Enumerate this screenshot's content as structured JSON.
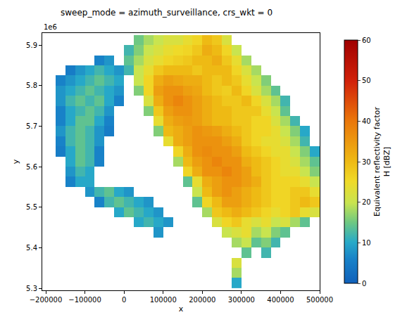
{
  "chart_data": {
    "type": "heatmap",
    "title": "sweep_mode = azimuth_surveillance, crs_wkt = 0",
    "x_label": "x",
    "y_label": "y",
    "y_offset_label": "1e6",
    "grid": false,
    "xlim": [
      -209000,
      500000
    ],
    "ylim": [
      5295000,
      5930000
    ],
    "xticks": [
      {
        "value": -200000,
        "label": "−200000"
      },
      {
        "value": -100000,
        "label": "−100000"
      },
      0,
      100000,
      200000,
      300000,
      400000,
      500000
    ],
    "yticks": [
      {
        "value": 5300000,
        "label": "5.3"
      },
      {
        "value": 5400000,
        "label": "5.4"
      },
      {
        "value": 5500000,
        "label": "5.5"
      },
      {
        "value": 5600000,
        "label": "5.6"
      },
      {
        "value": 5700000,
        "label": "5.7"
      },
      {
        "value": 5800000,
        "label": "5.8"
      },
      {
        "value": 5900000,
        "label": "5.9"
      }
    ],
    "colorbar": {
      "range": [
        0,
        60
      ],
      "ticks": [
        0,
        10,
        20,
        30,
        40,
        50,
        60
      ],
      "label": [
        "Equivalent reflectivity factor",
        "H [dBZ]"
      ]
    },
    "x": [
      -187500,
      -162500,
      -137500,
      -112500,
      -87500,
      -62500,
      -37500,
      -12500,
      12500,
      37500,
      62500,
      87500,
      112500,
      137500,
      162500,
      187500,
      212500,
      237500,
      262500,
      287500,
      312500,
      337500,
      362500,
      387500,
      412500,
      437500,
      462500,
      487500
    ],
    "y": [
      5312500,
      5337500,
      5362500,
      5387500,
      5412500,
      5437500,
      5462500,
      5487500,
      5512500,
      5537500,
      5562500,
      5587500,
      5612500,
      5637500,
      5662500,
      5687500,
      5712500,
      5737500,
      5762500,
      5787500,
      5812500,
      5837500,
      5862500,
      5887500,
      5912500
    ],
    "cells": [
      [
        null,
        null,
        null,
        null,
        null,
        null,
        null,
        null,
        null,
        null,
        null,
        null,
        null,
        null,
        null,
        null,
        null,
        null,
        null,
        10,
        null,
        null,
        null,
        null,
        null,
        null,
        null,
        null
      ],
      [
        null,
        null,
        null,
        null,
        null,
        null,
        null,
        null,
        null,
        null,
        null,
        null,
        null,
        null,
        null,
        null,
        null,
        null,
        null,
        18,
        null,
        null,
        null,
        null,
        null,
        null,
        null,
        null
      ],
      [
        null,
        null,
        null,
        null,
        null,
        null,
        null,
        null,
        null,
        null,
        null,
        null,
        null,
        null,
        null,
        null,
        null,
        null,
        null,
        22,
        null,
        null,
        null,
        null,
        null,
        null,
        null,
        null
      ],
      [
        null,
        null,
        null,
        null,
        null,
        null,
        null,
        null,
        null,
        null,
        null,
        null,
        null,
        null,
        null,
        null,
        null,
        null,
        null,
        null,
        14,
        null,
        12,
        null,
        null,
        null,
        null,
        null
      ],
      [
        null,
        null,
        null,
        null,
        null,
        null,
        null,
        null,
        null,
        null,
        null,
        null,
        null,
        null,
        null,
        null,
        null,
        null,
        null,
        18,
        20,
        14,
        16,
        12,
        null,
        null,
        null,
        null
      ],
      [
        null,
        null,
        null,
        null,
        null,
        null,
        null,
        null,
        null,
        null,
        null,
        8,
        null,
        null,
        null,
        null,
        null,
        null,
        20,
        22,
        24,
        18,
        20,
        16,
        14,
        null,
        null,
        null
      ],
      [
        null,
        null,
        null,
        null,
        null,
        null,
        null,
        null,
        null,
        10,
        12,
        10,
        8,
        null,
        null,
        null,
        null,
        22,
        26,
        28,
        24,
        22,
        24,
        20,
        22,
        18,
        14,
        null
      ],
      [
        null,
        null,
        null,
        null,
        null,
        null,
        null,
        10,
        14,
        12,
        10,
        8,
        null,
        null,
        null,
        null,
        18,
        28,
        30,
        32,
        30,
        28,
        26,
        24,
        26,
        28,
        24,
        22
      ],
      [
        null,
        null,
        null,
        null,
        null,
        6,
        12,
        14,
        12,
        10,
        8,
        null,
        null,
        null,
        null,
        14,
        26,
        30,
        34,
        34,
        32,
        30,
        28,
        26,
        26,
        28,
        30,
        28
      ],
      [
        null,
        null,
        null,
        null,
        8,
        12,
        14,
        10,
        8,
        null,
        null,
        null,
        null,
        null,
        null,
        20,
        30,
        34,
        36,
        34,
        32,
        30,
        28,
        26,
        26,
        28,
        28,
        24
      ],
      [
        null,
        null,
        6,
        10,
        10,
        null,
        null,
        null,
        null,
        null,
        null,
        null,
        null,
        null,
        14,
        24,
        32,
        34,
        36,
        36,
        34,
        32,
        28,
        26,
        26,
        26,
        24,
        20
      ],
      [
        null,
        null,
        8,
        12,
        10,
        null,
        null,
        null,
        null,
        null,
        null,
        null,
        null,
        null,
        26,
        32,
        36,
        36,
        38,
        36,
        34,
        30,
        28,
        26,
        24,
        24,
        20,
        16
      ],
      [
        null,
        null,
        10,
        14,
        12,
        6,
        null,
        null,
        null,
        null,
        null,
        null,
        null,
        18,
        30,
        34,
        36,
        38,
        36,
        36,
        32,
        30,
        28,
        26,
        24,
        22,
        18,
        14
      ],
      [
        null,
        5,
        10,
        14,
        12,
        6,
        null,
        null,
        null,
        null,
        null,
        null,
        null,
        26,
        32,
        36,
        37,
        36,
        36,
        34,
        30,
        28,
        26,
        24,
        24,
        20,
        16,
        10
      ],
      [
        null,
        6,
        12,
        14,
        12,
        8,
        null,
        null,
        null,
        null,
        null,
        null,
        24,
        32,
        34,
        36,
        36,
        36,
        34,
        32,
        28,
        26,
        24,
        24,
        22,
        18,
        12,
        null
      ],
      [
        null,
        8,
        12,
        14,
        12,
        8,
        5,
        null,
        null,
        null,
        null,
        16,
        30,
        32,
        34,
        36,
        35,
        34,
        32,
        30,
        28,
        26,
        26,
        24,
        20,
        16,
        10,
        null
      ],
      [
        null,
        6,
        10,
        14,
        14,
        10,
        6,
        null,
        null,
        null,
        null,
        24,
        32,
        34,
        35,
        34,
        32,
        30,
        30,
        28,
        28,
        26,
        26,
        22,
        18,
        12,
        null,
        null
      ],
      [
        null,
        6,
        10,
        12,
        14,
        12,
        8,
        null,
        null,
        null,
        16,
        28,
        34,
        36,
        36,
        34,
        32,
        30,
        30,
        28,
        28,
        28,
        24,
        20,
        14,
        null,
        null,
        null
      ],
      [
        null,
        8,
        12,
        14,
        12,
        14,
        10,
        6,
        null,
        null,
        22,
        32,
        36,
        38,
        36,
        34,
        32,
        30,
        28,
        28,
        30,
        26,
        22,
        18,
        12,
        null,
        null,
        null
      ],
      [
        null,
        8,
        10,
        12,
        14,
        12,
        10,
        8,
        null,
        16,
        26,
        34,
        36,
        36,
        34,
        33,
        30,
        28,
        27,
        30,
        26,
        22,
        18,
        14,
        null,
        null,
        null,
        null
      ],
      [
        null,
        6,
        8,
        10,
        12,
        14,
        12,
        10,
        null,
        20,
        26,
        32,
        34,
        33,
        32,
        32,
        30,
        28,
        30,
        28,
        24,
        20,
        16,
        null,
        null,
        null,
        null,
        null
      ],
      [
        null,
        null,
        5,
        8,
        10,
        12,
        10,
        8,
        12,
        20,
        24,
        28,
        30,
        30,
        30,
        28,
        30,
        30,
        30,
        26,
        22,
        18,
        null,
        null,
        null,
        null,
        null,
        null
      ],
      [
        null,
        null,
        null,
        null,
        null,
        6,
        8,
        null,
        14,
        18,
        22,
        24,
        26,
        27,
        28,
        30,
        30,
        32,
        28,
        24,
        18,
        null,
        null,
        null,
        null,
        null,
        null,
        null
      ],
      [
        null,
        null,
        null,
        null,
        null,
        null,
        null,
        null,
        12,
        16,
        20,
        22,
        24,
        25,
        26,
        28,
        32,
        30,
        26,
        20,
        null,
        null,
        null,
        null,
        null,
        null,
        null,
        null
      ],
      [
        null,
        null,
        null,
        null,
        null,
        null,
        null,
        null,
        null,
        15,
        18,
        20,
        22,
        22,
        24,
        26,
        30,
        28,
        22,
        null,
        null,
        null,
        null,
        null,
        null,
        null,
        null,
        null
      ]
    ]
  }
}
